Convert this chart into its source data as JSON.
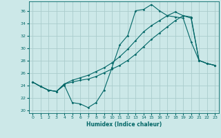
{
  "xlabel": "Humidex (Indice chaleur)",
  "bg_color": "#cce8e8",
  "grid_color": "#aacccc",
  "line_color": "#006666",
  "xlim": [
    -0.5,
    23.5
  ],
  "ylim": [
    19.5,
    37.5
  ],
  "yticks": [
    20,
    22,
    24,
    26,
    28,
    30,
    32,
    34,
    36
  ],
  "xticks": [
    0,
    1,
    2,
    3,
    4,
    5,
    6,
    7,
    8,
    9,
    10,
    11,
    12,
    13,
    14,
    15,
    16,
    17,
    18,
    19,
    20,
    21,
    22,
    23
  ],
  "line1_x": [
    0,
    1,
    2,
    3,
    4,
    5,
    6,
    7,
    8,
    9,
    10,
    11,
    12,
    13,
    14,
    15,
    16,
    17,
    18,
    19,
    20,
    21,
    22,
    23
  ],
  "line1_y": [
    24.5,
    23.8,
    23.2,
    23.0,
    24.0,
    21.2,
    21.0,
    20.4,
    21.2,
    23.2,
    26.8,
    30.5,
    32.0,
    36.0,
    36.2,
    37.0,
    36.0,
    35.2,
    35.0,
    34.8,
    31.0,
    28.0,
    27.5,
    27.2
  ],
  "line2_x": [
    0,
    1,
    2,
    3,
    4,
    5,
    6,
    7,
    8,
    9,
    10,
    11,
    12,
    13,
    14,
    15,
    16,
    17,
    18,
    19,
    20,
    21,
    22,
    23
  ],
  "line2_y": [
    24.5,
    23.8,
    23.2,
    23.0,
    24.2,
    24.8,
    25.2,
    25.6,
    26.2,
    26.8,
    27.6,
    28.6,
    29.8,
    31.2,
    32.6,
    33.6,
    34.4,
    35.2,
    35.8,
    35.2,
    34.8,
    28.0,
    27.5,
    27.2
  ],
  "line3_x": [
    0,
    1,
    2,
    3,
    4,
    5,
    6,
    7,
    8,
    9,
    10,
    11,
    12,
    13,
    14,
    15,
    16,
    17,
    18,
    19,
    20,
    21,
    22,
    23
  ],
  "line3_y": [
    24.5,
    23.8,
    23.2,
    23.0,
    24.2,
    24.5,
    24.8,
    25.0,
    25.4,
    26.0,
    26.6,
    27.2,
    28.0,
    29.0,
    30.2,
    31.4,
    32.4,
    33.4,
    34.4,
    35.2,
    35.0,
    28.0,
    27.5,
    27.2
  ]
}
